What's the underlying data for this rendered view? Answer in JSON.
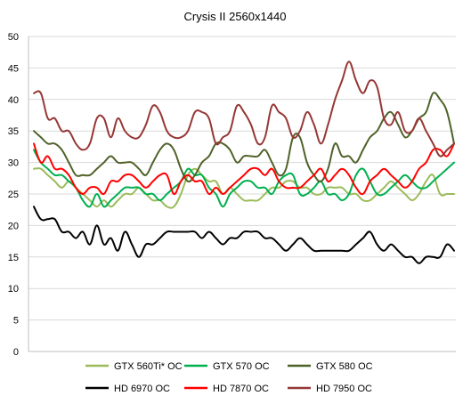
{
  "chart_data": {
    "type": "line",
    "title": "Crysis II 2560x1440",
    "xlabel": "",
    "ylabel": "",
    "ylim": [
      0,
      50
    ],
    "yticks": [
      0,
      5,
      10,
      15,
      20,
      25,
      30,
      35,
      40,
      45,
      50
    ],
    "grid": true,
    "legend_position": "bottom",
    "series": [
      {
        "name": "GTX 560Ti* OC",
        "color": "#9bbb59",
        "values": [
          29,
          29,
          28,
          27,
          26,
          27,
          26,
          25,
          24,
          23,
          24,
          23,
          24,
          25,
          25,
          26,
          25,
          24,
          24,
          23,
          23,
          25,
          28,
          29,
          28,
          27,
          27,
          25,
          26,
          25,
          24,
          24,
          24,
          25,
          26,
          26,
          27,
          27,
          26,
          26,
          25,
          25,
          26,
          26,
          26,
          25,
          25,
          24,
          24,
          25,
          26,
          27,
          26,
          25,
          24,
          25,
          27,
          28,
          25,
          25,
          25
        ]
      },
      {
        "name": "GTX 570 OC",
        "color": "#00b050",
        "values": [
          32,
          30,
          29,
          28,
          28,
          27,
          26,
          24,
          23,
          25,
          23,
          24,
          25,
          26,
          26,
          26,
          25,
          25,
          24,
          25,
          26,
          27,
          29,
          28,
          28,
          26,
          25,
          23,
          25,
          26,
          27,
          27,
          26,
          26,
          25,
          27,
          28,
          28,
          25,
          25,
          26,
          27,
          25,
          25,
          24,
          25,
          28,
          29,
          27,
          25,
          25,
          26,
          27,
          28,
          27,
          26,
          26,
          27,
          28,
          29,
          30
        ]
      },
      {
        "name": "GTX 580 OC",
        "color": "#4f6228",
        "values": [
          35,
          34,
          33,
          33,
          32,
          30,
          28,
          28,
          28,
          29,
          30,
          31,
          30,
          30,
          30,
          29,
          28,
          30,
          32,
          33,
          32,
          29,
          27,
          28,
          30,
          31,
          33,
          33,
          32,
          30,
          31,
          31,
          31,
          32,
          30,
          28,
          29,
          34,
          34,
          30,
          28,
          27,
          29,
          33,
          31,
          31,
          30,
          32,
          34,
          35,
          37,
          38,
          36,
          34,
          35,
          37,
          38,
          41,
          40,
          38,
          33
        ]
      },
      {
        "name": "HD 6970 OC",
        "color": "#000000",
        "values": [
          23,
          21,
          21,
          21,
          19,
          19,
          18,
          19,
          17,
          20,
          17,
          18,
          16,
          19,
          17,
          15,
          17,
          17,
          18,
          19,
          19,
          19,
          19,
          19,
          18,
          19,
          18,
          17,
          18,
          18,
          19,
          19,
          19,
          18,
          18,
          17,
          16,
          17,
          18,
          17,
          16,
          16,
          16,
          16,
          16,
          16,
          17,
          18,
          19,
          17,
          16,
          17,
          16,
          15,
          15,
          14,
          15,
          15,
          15,
          17,
          16
        ]
      },
      {
        "name": "HD 7870 OC",
        "color": "#ff0000",
        "values": [
          33,
          30,
          31,
          29,
          29,
          28,
          26,
          25,
          26,
          26,
          25,
          27,
          27,
          28,
          28,
          27,
          26,
          27,
          28,
          28,
          25,
          27,
          28,
          27,
          27,
          25,
          26,
          25,
          26,
          27,
          28,
          29,
          29,
          28,
          29,
          27,
          26,
          26,
          26,
          27,
          28,
          29,
          27,
          28,
          29,
          28,
          26,
          25,
          27,
          28,
          29,
          28,
          27,
          26,
          27,
          29,
          30,
          32,
          32,
          31,
          33
        ]
      },
      {
        "name": "HD 7950 OC",
        "color": "#953735",
        "values": [
          41,
          41,
          37,
          37,
          35,
          35,
          33,
          32,
          33,
          37,
          37,
          34,
          37,
          35,
          34,
          34,
          36,
          39,
          38,
          35,
          34,
          34,
          35,
          38,
          38,
          37,
          33,
          34,
          35,
          39,
          38,
          36,
          33,
          34,
          39,
          38,
          37,
          34,
          35,
          38,
          36,
          33,
          36,
          40,
          43,
          46,
          43,
          41,
          43,
          42,
          37,
          36,
          38,
          35,
          35,
          37,
          35,
          33,
          31,
          32,
          33
        ]
      }
    ]
  }
}
